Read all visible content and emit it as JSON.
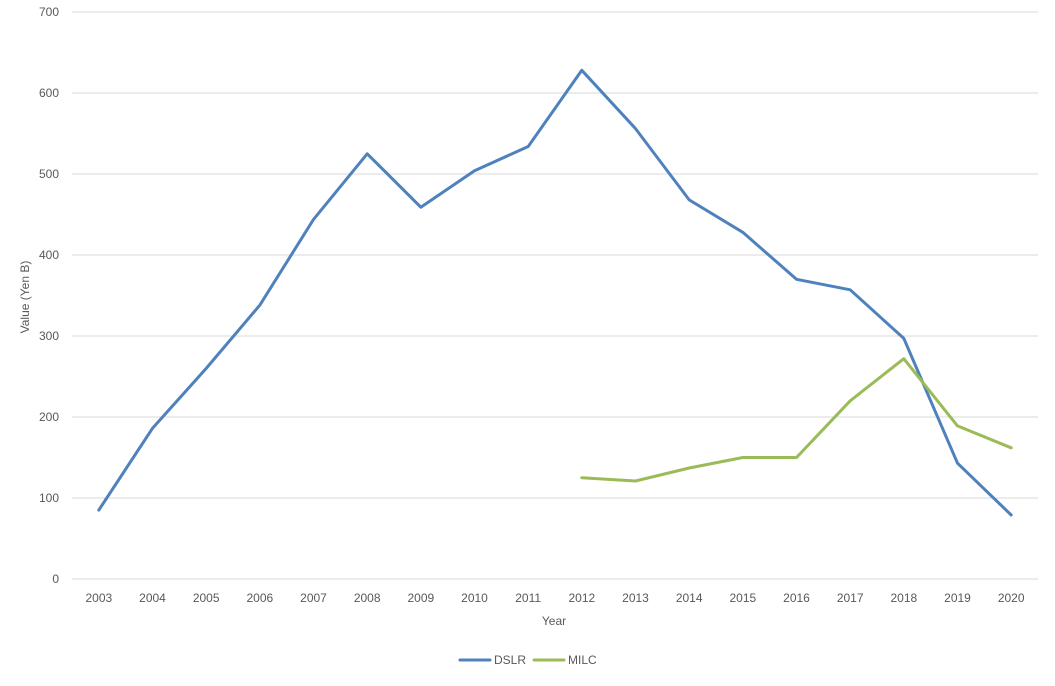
{
  "chart_data": {
    "type": "line",
    "title": "",
    "xlabel": "Year",
    "ylabel": "Value (Yen B)",
    "ylim": [
      0,
      700
    ],
    "yticks": [
      0,
      100,
      200,
      300,
      400,
      500,
      600,
      700
    ],
    "categories": [
      "2003",
      "2004",
      "2005",
      "2006",
      "2007",
      "2008",
      "2009",
      "2010",
      "2011",
      "2012",
      "2013",
      "2014",
      "2015",
      "2016",
      "2017",
      "2018",
      "2019",
      "2020"
    ],
    "grid": true,
    "legend_position": "bottom",
    "series": [
      {
        "name": "DSLR",
        "color": "#4f81bd",
        "values": [
          85,
          186,
          260,
          338,
          444,
          525,
          459,
          504,
          534,
          628,
          556,
          468,
          428,
          370,
          357,
          297,
          143,
          79
        ]
      },
      {
        "name": "MILC",
        "color": "#9bbb59",
        "values": [
          null,
          null,
          null,
          null,
          null,
          null,
          null,
          null,
          null,
          125,
          121,
          137,
          150,
          150,
          220,
          272,
          189,
          162
        ]
      }
    ]
  }
}
